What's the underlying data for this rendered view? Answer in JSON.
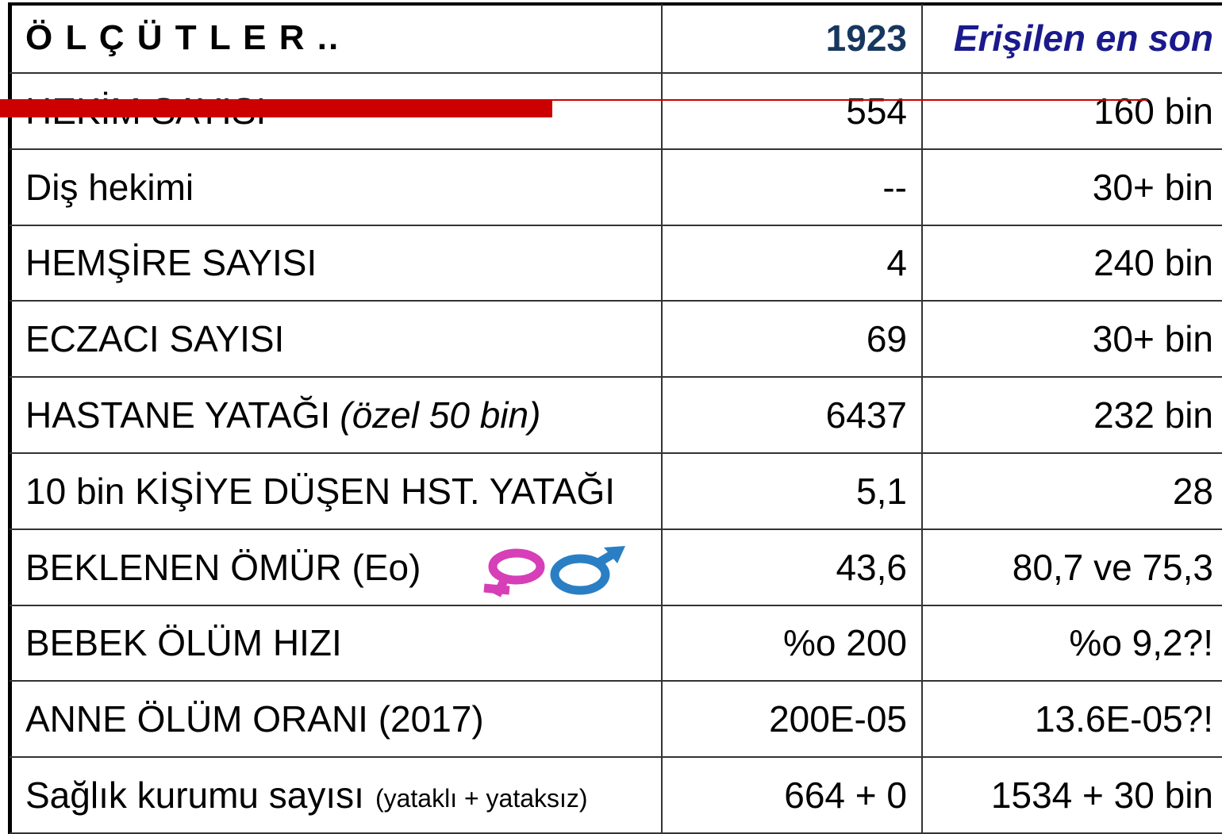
{
  "table": {
    "header": [
      "Ö L Ç Ü T L E R ..",
      "1923",
      "Erişilen en son"
    ],
    "rows": [
      {
        "label": "HEKİM SAYISI",
        "v1923": "554",
        "latest": "160 bin"
      },
      {
        "label": "Diş hekimi",
        "v1923": "--",
        "latest": "30+ bin"
      },
      {
        "label": "HEMŞİRE SAYISI",
        "v1923": "4",
        "latest": "240 bin"
      },
      {
        "label": "ECZACI SAYISI",
        "v1923": "69",
        "latest": "30+ bin"
      },
      {
        "label": "HASTANE YATAĞI",
        "note": "(özel 50 bin)",
        "v1923": "6437",
        "latest": "232 bin"
      },
      {
        "label": "10 bin KİŞİYE DÜŞEN HST. YATAĞI",
        "v1923": "5,1",
        "latest": "28"
      },
      {
        "label": "BEKLENEN ÖMÜR (Eo)",
        "v1923": "43,6",
        "latest": "80,7 ve 75,3"
      },
      {
        "label": "BEBEK ÖLÜM HIZI",
        "v1923": "%o 200",
        "latest": "%o 9,2?!"
      },
      {
        "label": "ANNE ÖLÜM ORANI (2017)",
        "v1923": "200E-05",
        "latest": "13.6E-05?!"
      },
      {
        "label": "Sağlık kurumu sayısı",
        "small": "(yataklı + yataksız)",
        "v1923": "664 + 0",
        "latest": "1534 + 30 bin"
      }
    ]
  }
}
